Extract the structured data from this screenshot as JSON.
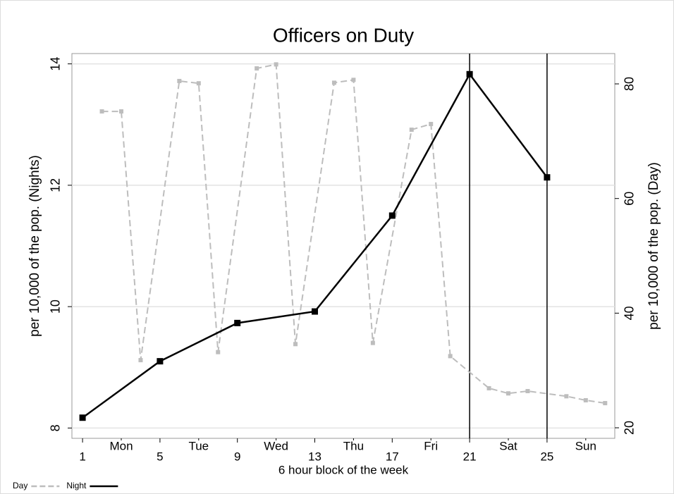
{
  "chart_data": {
    "type": "line",
    "title": "Officers on Duty",
    "x_label": "6 hour block of the week",
    "y_label": "per 10,000 of the pop. (Nights)",
    "y2_label": "per 10,000 of the pop. (Day)",
    "xlim": [
      0.45,
      28.5
    ],
    "xticks": [
      1,
      5,
      9,
      13,
      17,
      21,
      25
    ],
    "day_ticks": [
      {
        "value": 3,
        "label": "Mon"
      },
      {
        "value": 7,
        "label": "Tue"
      },
      {
        "value": 11,
        "label": "Wed"
      },
      {
        "value": 15,
        "label": "Thu"
      },
      {
        "value": 19,
        "label": "Fri"
      },
      {
        "value": 23,
        "label": "Sat"
      },
      {
        "value": 27,
        "label": "Sun"
      }
    ],
    "ylim": [
      7.83,
      14.17
    ],
    "yticks": [
      8,
      10,
      12,
      14
    ],
    "y2lim": [
      18.16,
      85.29
    ],
    "y2ticks": [
      20,
      40,
      60,
      80
    ],
    "grid": true,
    "vlines": [
      21,
      25
    ],
    "series": [
      {
        "name": "Day",
        "color": "#bdbdbd",
        "dash": true,
        "axis": "y2",
        "x": [
          2,
          3,
          4,
          6,
          7,
          8,
          10,
          11,
          12,
          14,
          15,
          16,
          18,
          19,
          20,
          22,
          23,
          24,
          26,
          27,
          28
        ],
        "values": [
          75.2,
          75.2,
          31.8,
          80.5,
          80.1,
          33.2,
          82.7,
          83.4,
          34.6,
          80.2,
          80.7,
          34.8,
          72.0,
          73.0,
          32.5,
          26.9,
          26.0,
          26.4,
          25.5,
          24.8,
          24.3
        ]
      },
      {
        "name": "Night",
        "color": "#000000",
        "dash": false,
        "axis": "y",
        "x": [
          1,
          5,
          9,
          13,
          17,
          21,
          25
        ],
        "values": [
          8.17,
          9.1,
          9.73,
          9.92,
          11.5,
          13.83,
          12.13
        ]
      }
    ]
  }
}
